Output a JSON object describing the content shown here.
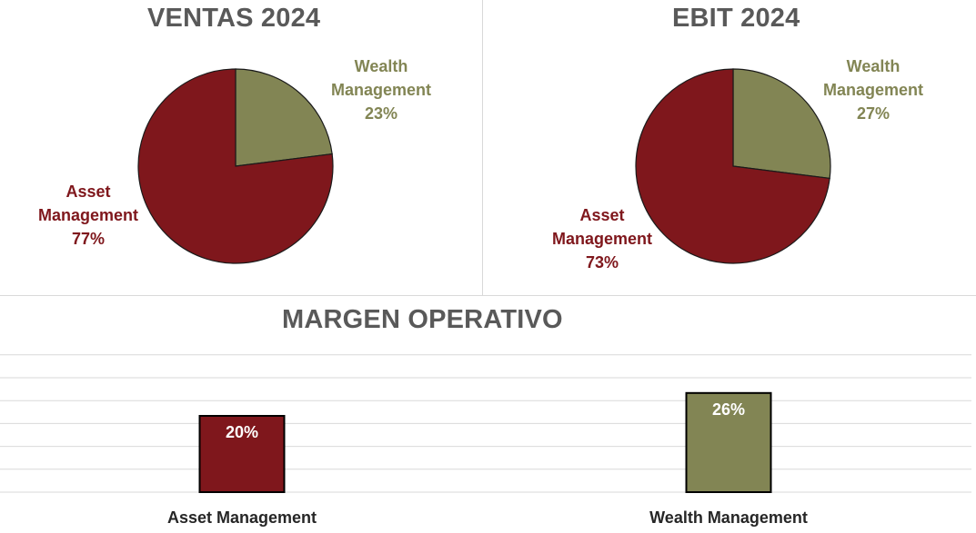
{
  "colors": {
    "asset": "#7f171c",
    "wealth": "#828554",
    "title": "#595959",
    "grid": "#d9d9d9"
  },
  "chart_data": [
    {
      "type": "pie",
      "title": "VENTAS 2024",
      "slices": [
        {
          "name_line1": "Wealth",
          "name_line2": "Management",
          "value": 23,
          "value_label": "23%"
        },
        {
          "name_line1": "Asset",
          "name_line2": "Management",
          "value": 77,
          "value_label": "77%"
        }
      ]
    },
    {
      "type": "pie",
      "title": "EBIT 2024",
      "slices": [
        {
          "name_line1": "Wealth",
          "name_line2": "Management",
          "value": 27,
          "value_label": "27%"
        },
        {
          "name_line1": "Asset",
          "name_line2": "Management",
          "value": 73,
          "value_label": "73%"
        }
      ]
    },
    {
      "type": "bar",
      "title": "MARGEN OPERATIVO",
      "categories": [
        "Asset Management",
        "Wealth Management"
      ],
      "values": [
        20,
        26
      ],
      "value_labels": [
        "20%",
        "26%"
      ],
      "grid": true
    }
  ]
}
